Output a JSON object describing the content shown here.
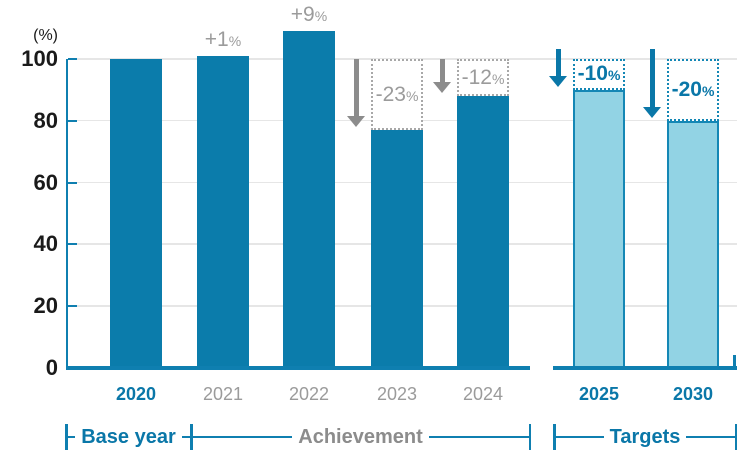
{
  "colors": {
    "bar_dark": "#0b7cab",
    "bar_light_fill": "#92d3e4",
    "bar_light_border": "#1487b5",
    "accent_blue": "#0a77a8",
    "axis_blue": "#0f7fb0",
    "gray_text": "#9b9b9b",
    "gray_dark": "#8c8c8c",
    "arrow_gray": "#8c8c8c",
    "gridline": "#e6e6e6",
    "box_border_gray": "#a8a8a8",
    "text_black": "#1a1a1a"
  },
  "chart_data": {
    "type": "bar",
    "title": "",
    "unit_label": "(%)",
    "xlabel": "",
    "ylabel": "(%)",
    "ylim": [
      0,
      109
    ],
    "yticks": [
      0,
      20,
      40,
      60,
      80,
      100
    ],
    "grid": true,
    "reference_value": 100,
    "categories": [
      "2020",
      "2021",
      "2022",
      "2023",
      "2024",
      "2025",
      "2030"
    ],
    "values": [
      100,
      101,
      109,
      77,
      88,
      90,
      80
    ],
    "bars": [
      {
        "year": "2020",
        "value": 100,
        "style": "solid",
        "year_color": "blue",
        "group": "Base year",
        "delta": null
      },
      {
        "year": "2021",
        "value": 101,
        "style": "solid",
        "year_color": "gray",
        "group": "Achievement",
        "delta": {
          "text": "+1",
          "unit": "%",
          "placement": "above",
          "color": "gray",
          "arrow": false
        }
      },
      {
        "year": "2022",
        "value": 109,
        "style": "solid",
        "year_color": "gray",
        "group": "Achievement",
        "delta": {
          "text": "+9",
          "unit": "%",
          "placement": "above",
          "color": "gray",
          "arrow": false
        }
      },
      {
        "year": "2023",
        "value": 77,
        "style": "solid",
        "year_color": "gray",
        "group": "Achievement",
        "delta": {
          "text": "-23",
          "unit": "%",
          "placement": "box",
          "color": "gray",
          "arrow": true
        }
      },
      {
        "year": "2024",
        "value": 88,
        "style": "solid",
        "year_color": "gray",
        "group": "Achievement",
        "delta": {
          "text": "-12",
          "unit": "%",
          "placement": "box",
          "color": "gray",
          "arrow": true
        }
      },
      {
        "year": "2025",
        "value": 90,
        "style": "light",
        "year_color": "blue",
        "group": "Targets",
        "delta": {
          "text": "-10",
          "unit": "%",
          "placement": "box",
          "color": "blue",
          "arrow": true
        }
      },
      {
        "year": "2030",
        "value": 80,
        "style": "light",
        "year_color": "blue",
        "group": "Targets",
        "delta": {
          "text": "-20",
          "unit": "%",
          "placement": "box",
          "color": "blue",
          "arrow": true
        }
      }
    ],
    "groups": [
      {
        "label": "Base year",
        "color": "blue"
      },
      {
        "label": "Achievement",
        "color": "gray"
      },
      {
        "label": "Targets",
        "color": "blue"
      }
    ],
    "legend": null
  }
}
